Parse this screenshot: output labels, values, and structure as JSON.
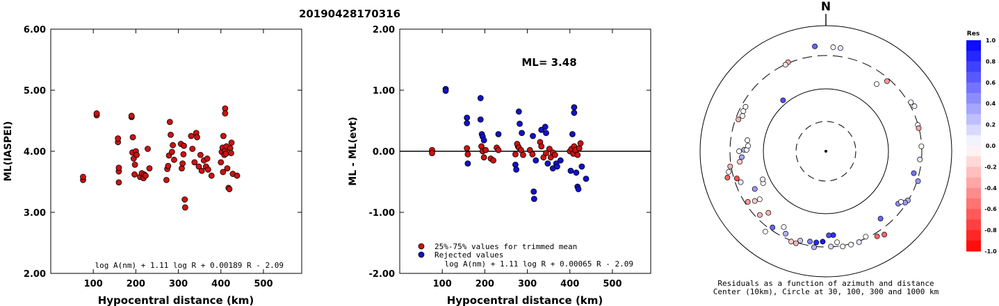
{
  "figure": {
    "title": "20190428170316"
  },
  "chart_data": [
    {
      "type": "scatter",
      "name": "ml-vs-distance",
      "title": "",
      "xlabel": "Hypocentral distance (km)",
      "ylabel": "ML(IASPEI)",
      "xlim": [
        0,
        590
      ],
      "ylim": [
        2.0,
        6.0
      ],
      "xticks": [
        100,
        200,
        300,
        400,
        500
      ],
      "yticks": [
        "2.00",
        "3.00",
        "4.00",
        "5.00",
        "6.00"
      ],
      "formula": "log A(nm) + 1.11 log R + 0.00189 R - 2.09",
      "marker_color": "#cc1111",
      "points": [
        [
          76,
          3.53
        ],
        [
          76,
          3.58
        ],
        [
          108,
          4.59
        ],
        [
          108,
          4.62
        ],
        [
          158,
          4.15
        ],
        [
          158,
          4.21
        ],
        [
          160,
          3.49
        ],
        [
          160,
          3.67
        ],
        [
          160,
          3.73
        ],
        [
          190,
          4.56
        ],
        [
          190,
          4.58
        ],
        [
          192,
          3.98
        ],
        [
          193,
          4.23
        ],
        [
          195,
          3.88
        ],
        [
          197,
          3.62
        ],
        [
          198,
          3.78
        ],
        [
          200,
          4.0
        ],
        [
          202,
          3.94
        ],
        [
          210,
          3.58
        ],
        [
          214,
          3.64
        ],
        [
          218,
          3.56
        ],
        [
          220,
          3.62
        ],
        [
          223,
          3.6
        ],
        [
          228,
          4.04
        ],
        [
          232,
          3.72
        ],
        [
          272,
          3.53
        ],
        [
          274,
          3.71
        ],
        [
          276,
          3.76
        ],
        [
          278,
          3.93
        ],
        [
          280,
          4.48
        ],
        [
          282,
          4.27
        ],
        [
          285,
          3.99
        ],
        [
          287,
          4.1
        ],
        [
          290,
          3.86
        ],
        [
          306,
          4.12
        ],
        [
          308,
          3.72
        ],
        [
          310,
          3.8
        ],
        [
          312,
          3.95
        ],
        [
          313,
          4.09
        ],
        [
          315,
          3.21
        ],
        [
          316,
          3.08
        ],
        [
          330,
          4.25
        ],
        [
          333,
          4.04
        ],
        [
          338,
          3.82
        ],
        [
          342,
          4.3
        ],
        [
          344,
          4.23
        ],
        [
          348,
          3.75
        ],
        [
          352,
          3.94
        ],
        [
          355,
          3.68
        ],
        [
          360,
          3.85
        ],
        [
          365,
          3.75
        ],
        [
          368,
          3.88
        ],
        [
          370,
          3.7
        ],
        [
          378,
          3.6
        ],
        [
          400,
          3.82
        ],
        [
          402,
          3.99
        ],
        [
          404,
          4.06
        ],
        [
          405,
          3.66
        ],
        [
          406,
          4.25
        ],
        [
          408,
          3.94
        ],
        [
          410,
          4.01
        ],
        [
          410,
          4.7
        ],
        [
          410,
          4.62
        ],
        [
          412,
          3.96
        ],
        [
          413,
          4.08
        ],
        [
          415,
          3.72
        ],
        [
          418,
          3.4
        ],
        [
          420,
          3.38
        ],
        [
          422,
          4.05
        ],
        [
          424,
          3.97
        ],
        [
          425,
          4.14
        ],
        [
          428,
          3.63
        ],
        [
          438,
          3.6
        ]
      ]
    },
    {
      "type": "scatter",
      "name": "residual-vs-distance",
      "title": "",
      "xlabel": "Hypocentral distance (km)",
      "ylabel": "ML - ML(evt)",
      "xlim": [
        0,
        590
      ],
      "ylim": [
        -2.0,
        2.0
      ],
      "xticks": [
        100,
        200,
        300,
        400,
        500
      ],
      "yticks": [
        "-2.00",
        "-1.00",
        "0.00",
        "1.00",
        "2.00"
      ],
      "annotation": "ML= 3.48",
      "formula": "log A(nm) + 1.11 log R + 0.00065 R - 2.09",
      "legend": [
        {
          "label": "25%-75% values for trimmed mean",
          "color": "#cc1111"
        },
        {
          "label": "Rejected values",
          "color": "#1111cc"
        }
      ],
      "trimmed_points": [
        [
          76,
          0.02
        ],
        [
          76,
          -0.03
        ],
        [
          158,
          0.05
        ],
        [
          160,
          -0.05
        ],
        [
          192,
          0.08
        ],
        [
          195,
          0.0
        ],
        [
          198,
          -0.1
        ],
        [
          202,
          0.02
        ],
        [
          214,
          -0.12
        ],
        [
          220,
          -0.15
        ],
        [
          228,
          0.06
        ],
        [
          232,
          0.02
        ],
        [
          272,
          -0.05
        ],
        [
          276,
          0.12
        ],
        [
          280,
          0.06
        ],
        [
          285,
          0.02
        ],
        [
          290,
          -0.06
        ],
        [
          306,
          0.02
        ],
        [
          312,
          -0.05
        ],
        [
          330,
          0.15
        ],
        [
          333,
          0.08
        ],
        [
          338,
          -0.1
        ],
        [
          344,
          -0.03
        ],
        [
          352,
          0.04
        ],
        [
          355,
          -0.1
        ],
        [
          360,
          -0.02
        ],
        [
          365,
          -0.06
        ],
        [
          400,
          0.0
        ],
        [
          404,
          0.04
        ],
        [
          408,
          -0.04
        ],
        [
          410,
          0.08
        ],
        [
          413,
          0.02
        ],
        [
          418,
          -0.06
        ],
        [
          422,
          0.05
        ],
        [
          425,
          0.13
        ]
      ],
      "rejected_points": [
        [
          108,
          1.02
        ],
        [
          108,
          0.99
        ],
        [
          158,
          0.55
        ],
        [
          158,
          0.46
        ],
        [
          160,
          -0.2
        ],
        [
          190,
          0.87
        ],
        [
          190,
          0.52
        ],
        [
          193,
          0.28
        ],
        [
          195,
          0.24
        ],
        [
          198,
          0.18
        ],
        [
          232,
          0.28
        ],
        [
          272,
          -0.22
        ],
        [
          274,
          -0.3
        ],
        [
          278,
          0.08
        ],
        [
          280,
          0.65
        ],
        [
          282,
          0.45
        ],
        [
          287,
          0.3
        ],
        [
          313,
          0.25
        ],
        [
          315,
          -0.66
        ],
        [
          316,
          -0.78
        ],
        [
          320,
          -0.15
        ],
        [
          333,
          0.35
        ],
        [
          342,
          0.4
        ],
        [
          344,
          0.3
        ],
        [
          348,
          -0.2
        ],
        [
          360,
          -0.28
        ],
        [
          368,
          -0.2
        ],
        [
          370,
          -0.25
        ],
        [
          378,
          -0.15
        ],
        [
          402,
          -0.32
        ],
        [
          406,
          0.28
        ],
        [
          410,
          0.72
        ],
        [
          410,
          0.63
        ],
        [
          415,
          -0.35
        ],
        [
          418,
          -0.58
        ],
        [
          420,
          -0.62
        ],
        [
          428,
          -0.25
        ],
        [
          438,
          -0.45
        ]
      ]
    },
    {
      "type": "scatter",
      "name": "azimuthal-residuals",
      "title": "N",
      "caption_line1": "Residuals as a function of azimuth and distance",
      "caption_line2": "Center (10km), Circle at 30, 100, 300 and 1000 km",
      "colorbar_title": "Res",
      "colorbar_ticks": [
        "1.0",
        "0.8",
        "0.6",
        "0.4",
        "0.2",
        "0.0",
        "-0.2",
        "-0.4",
        "-0.6",
        "-0.8",
        "-1.0"
      ],
      "color_positive": "#0000ff",
      "color_negative": "#ff0000",
      "points": [
        {
          "az": -6,
          "r": 0.84,
          "res": 0.6
        },
        {
          "az": 4,
          "r": 0.83,
          "res": 0.05
        },
        {
          "az": 8,
          "r": 0.83,
          "res": 0.1
        },
        {
          "az": -23,
          "r": 0.77,
          "res": -0.3
        },
        {
          "az": -25,
          "r": 0.76,
          "res": -0.1
        },
        {
          "az": -40,
          "r": 0.53,
          "res": 0.7
        },
        {
          "az": 37,
          "r": 0.67,
          "res": 0.0
        },
        {
          "az": 41,
          "r": 0.74,
          "res": -0.4
        },
        {
          "az": 60,
          "r": 0.78,
          "res": 0.0
        },
        {
          "az": 63,
          "r": 0.79,
          "res": 0.05
        },
        {
          "az": 74,
          "r": 0.76,
          "res": 0.0
        },
        {
          "az": 76,
          "r": 0.76,
          "res": -0.35
        },
        {
          "az": 87,
          "r": 0.76,
          "res": 0.0
        },
        {
          "az": 95,
          "r": 0.75,
          "res": 0.1
        },
        {
          "az": 104,
          "r": 0.72,
          "res": 0.55
        },
        {
          "az": 108,
          "r": 0.77,
          "res": 0.4
        },
        {
          "az": 121,
          "r": 0.76,
          "res": 0.3
        },
        {
          "az": 123,
          "r": 0.75,
          "res": 0.4
        },
        {
          "az": 126,
          "r": 0.71,
          "res": 0.45
        },
        {
          "az": 124,
          "r": 0.72,
          "res": 0.0
        },
        {
          "az": 141,
          "r": 0.69,
          "res": 0.6
        },
        {
          "az": 145,
          "r": 0.81,
          "res": -0.6
        },
        {
          "az": 149,
          "r": 0.79,
          "res": -0.6
        },
        {
          "az": 155,
          "r": 0.75,
          "res": 0.0
        },
        {
          "az": 160,
          "r": 0.77,
          "res": 0.1
        },
        {
          "az": 165,
          "r": 0.77,
          "res": 0.0
        },
        {
          "az": 170,
          "r": 0.77,
          "res": 0.0
        },
        {
          "az": 173,
          "r": 0.73,
          "res": 0.0
        },
        {
          "az": 175,
          "r": 0.67,
          "res": 0.8
        },
        {
          "az": 178,
          "r": 0.67,
          "res": 0.7
        },
        {
          "az": 182,
          "r": 0.72,
          "res": 0.9
        },
        {
          "az": 186,
          "r": 0.73,
          "res": 0.85
        },
        {
          "az": 177,
          "r": 0.76,
          "res": 0.15
        },
        {
          "az": 187,
          "r": 0.77,
          "res": 0.3
        },
        {
          "az": 190,
          "r": 0.73,
          "res": 0.5
        },
        {
          "az": 196,
          "r": 0.74,
          "res": 0.2
        },
        {
          "az": 198,
          "r": 0.77,
          "res": -0.3
        },
        {
          "az": 201,
          "r": 0.77,
          "res": -0.2
        },
        {
          "az": 206,
          "r": 0.73,
          "res": 0.3
        },
        {
          "az": 209,
          "r": 0.69,
          "res": 0.0
        },
        {
          "az": 215,
          "r": 0.74,
          "res": 0.6
        },
        {
          "az": 217,
          "r": 0.8,
          "res": 0.0
        },
        {
          "az": 223,
          "r": 0.67,
          "res": -0.3
        },
        {
          "az": 226,
          "r": 0.73,
          "res": -0.3
        },
        {
          "az": 234,
          "r": 0.65,
          "res": 0.0
        },
        {
          "az": 235,
          "r": 0.69,
          "res": -0.2
        },
        {
          "az": 237,
          "r": 0.74,
          "res": -0.4
        },
        {
          "az": 242,
          "r": 0.64,
          "res": 0.4
        },
        {
          "az": 243,
          "r": 0.56,
          "res": 0.0
        },
        {
          "az": 246,
          "r": 0.55,
          "res": 0.05
        },
        {
          "az": 250,
          "r": 0.72,
          "res": 0.1
        },
        {
          "az": 253,
          "r": 0.74,
          "res": -0.7
        },
        {
          "az": 255,
          "r": 0.81,
          "res": -0.6
        },
        {
          "az": 258,
          "r": 0.79,
          "res": 0.0
        },
        {
          "az": 261,
          "r": 0.77,
          "res": -0.3
        },
        {
          "az": 263,
          "r": 0.69,
          "res": -0.2
        },
        {
          "az": 266,
          "r": 0.67,
          "res": 0.35
        },
        {
          "az": 270,
          "r": 0.69,
          "res": 0.0
        },
        {
          "az": 271,
          "r": 0.65,
          "res": 0.3
        },
        {
          "az": 271,
          "r": 0.63,
          "res": 0.0
        },
        {
          "az": 274,
          "r": 0.62,
          "res": 0.0
        },
        {
          "az": 278,
          "r": 0.63,
          "res": 0.0
        },
        {
          "az": 290,
          "r": 0.74,
          "res": -0.3
        },
        {
          "az": 293,
          "r": 0.72,
          "res": 0.0
        },
        {
          "az": 296,
          "r": 0.73,
          "res": 0.0
        },
        {
          "az": 299,
          "r": 0.73,
          "res": 0.0
        }
      ]
    }
  ]
}
